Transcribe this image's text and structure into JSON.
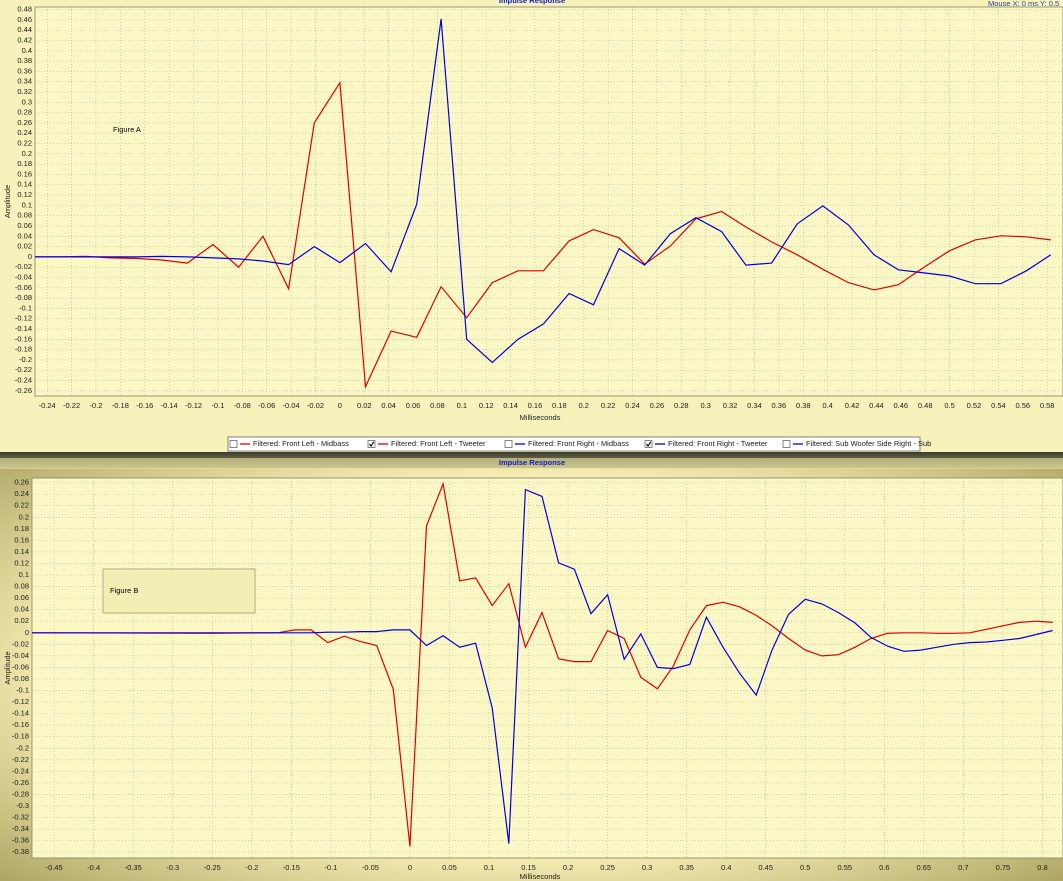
{
  "chart_data": [
    {
      "type": "line",
      "title": "Impulse Response",
      "mouse_readout": "Mouse X: 0 ms   Y: 0.5",
      "annotation": "Figure A",
      "x_label": "Milliseconds",
      "y_label": "Amplitude",
      "grid": true,
      "xlim": [
        -0.25,
        0.593
      ],
      "ylim": [
        -0.27,
        0.485
      ],
      "xticks": [
        -0.24,
        -0.22,
        -0.2,
        -0.18,
        -0.16,
        -0.14,
        -0.12,
        -0.1,
        -0.08,
        -0.06,
        -0.04,
        -0.02,
        0,
        0.02,
        0.04,
        0.06,
        0.08,
        0.1,
        0.12,
        0.14,
        0.16,
        0.18,
        0.2,
        0.22,
        0.24,
        0.26,
        0.28,
        0.3,
        0.32,
        0.34,
        0.36,
        0.38,
        0.4,
        0.42,
        0.44,
        0.46,
        0.48,
        0.5,
        0.52,
        0.54,
        0.56,
        0.58
      ],
      "yticks": [
        0.48,
        0.46,
        0.44,
        0.42,
        0.4,
        0.38,
        0.36,
        0.34,
        0.32,
        0.3,
        0.28,
        0.26,
        0.24,
        0.22,
        0.2,
        0.18,
        0.16,
        0.14,
        0.12,
        0.1,
        0.08,
        0.06,
        0.04,
        0.02,
        0,
        -0.02,
        -0.04,
        -0.06,
        -0.08,
        -0.1,
        -0.12,
        -0.14,
        -0.16,
        -0.18,
        -0.2,
        -0.22,
        -0.24,
        -0.26
      ],
      "x": [
        -0.25,
        -0.229,
        -0.208,
        -0.188,
        -0.167,
        -0.146,
        -0.125,
        -0.104,
        -0.083,
        -0.063,
        -0.042,
        -0.021,
        0,
        0.021,
        0.042,
        0.063,
        0.083,
        0.104,
        0.125,
        0.146,
        0.167,
        0.188,
        0.208,
        0.229,
        0.25,
        0.271,
        0.292,
        0.313,
        0.333,
        0.354,
        0.375,
        0.396,
        0.417,
        0.438,
        0.458,
        0.479,
        0.5,
        0.521,
        0.542,
        0.563,
        0.583
      ],
      "series": [
        {
          "name": "Filtered: Front Left - Midbass",
          "color": "#e00000",
          "checked": false
        },
        {
          "name": "Filtered: Front Left - Tweeter",
          "color": "#e00000",
          "checked": true,
          "values": [
            0,
            0,
            0.001,
            -0.002,
            -0.003,
            -0.006,
            -0.012,
            0.024,
            -0.02,
            0.04,
            -0.062,
            0.26,
            0.338,
            -0.252,
            -0.144,
            -0.156,
            -0.058,
            -0.118,
            -0.05,
            -0.027,
            -0.027,
            0.031,
            0.053,
            0.037,
            -0.014,
            0.021,
            0.074,
            0.088,
            0.058,
            0.029,
            0.004,
            -0.024,
            -0.05,
            -0.064,
            -0.054,
            -0.02,
            0.012,
            0.033,
            0.041,
            0.039,
            0.033
          ]
        },
        {
          "name": "Filtered: Front Right - Midbass",
          "color": "#0000e0",
          "checked": false
        },
        {
          "name": "Filtered: Front Right - Tweeter",
          "color": "#0000e0",
          "checked": true,
          "values": [
            0,
            0,
            0,
            0,
            0,
            0.001,
            0,
            -0.002,
            -0.004,
            -0.008,
            -0.015,
            0.02,
            -0.011,
            0.026,
            -0.029,
            0.102,
            0.462,
            -0.16,
            -0.205,
            -0.16,
            -0.13,
            -0.071,
            -0.093,
            0.016,
            -0.016,
            0.045,
            0.076,
            0.049,
            -0.016,
            -0.012,
            0.064,
            0.099,
            0.062,
            0.004,
            -0.025,
            -0.031,
            -0.037,
            -0.052,
            -0.052,
            -0.027,
            0.004
          ]
        },
        {
          "name": "Filtered: Sub Woofer Side Right - Sub",
          "color": "#0000e0",
          "checked": false
        }
      ]
    },
    {
      "type": "line",
      "title": "Impulse Response",
      "annotation": "Figure B",
      "x_label": "Milliseconds",
      "y_label": "Amplitude",
      "grid": true,
      "xlim": [
        -0.478,
        0.826
      ],
      "ylim": [
        -0.39,
        0.268
      ],
      "xticks": [
        -0.45,
        -0.4,
        -0.35,
        -0.3,
        -0.25,
        -0.2,
        -0.15,
        -0.1,
        -0.05,
        0,
        0.05,
        0.1,
        0.15,
        0.2,
        0.25,
        0.3,
        0.35,
        0.4,
        0.45,
        0.5,
        0.55,
        0.6,
        0.65,
        0.7,
        0.75,
        0.8
      ],
      "yticks": [
        0.26,
        0.24,
        0.22,
        0.2,
        0.18,
        0.16,
        0.14,
        0.12,
        0.1,
        0.08,
        0.06,
        0.04,
        0.02,
        0,
        -0.02,
        -0.04,
        -0.06,
        -0.08,
        -0.1,
        -0.12,
        -0.14,
        -0.16,
        -0.18,
        -0.2,
        -0.22,
        -0.24,
        -0.26,
        -0.28,
        -0.3,
        -0.32,
        -0.34,
        -0.36,
        -0.38
      ],
      "x": [
        -0.478,
        -0.25,
        -0.188,
        -0.167,
        -0.146,
        -0.125,
        -0.104,
        -0.083,
        -0.063,
        -0.042,
        -0.021,
        0,
        0.021,
        0.042,
        0.063,
        0.083,
        0.104,
        0.125,
        0.146,
        0.167,
        0.188,
        0.208,
        0.229,
        0.25,
        0.271,
        0.292,
        0.313,
        0.333,
        0.354,
        0.375,
        0.396,
        0.417,
        0.438,
        0.458,
        0.479,
        0.5,
        0.521,
        0.542,
        0.563,
        0.583,
        0.604,
        0.625,
        0.646,
        0.667,
        0.688,
        0.708,
        0.729,
        0.75,
        0.771,
        0.792,
        0.813
      ],
      "series": [
        {
          "color": "#e00000",
          "values": [
            0,
            -0.001,
            0,
            0,
            0.005,
            0.005,
            -0.017,
            -0.006,
            -0.015,
            -0.022,
            -0.098,
            -0.37,
            0.185,
            0.258,
            0.09,
            0.095,
            0.047,
            0.085,
            -0.025,
            0.035,
            -0.045,
            -0.05,
            -0.05,
            0.004,
            -0.01,
            -0.077,
            -0.097,
            -0.058,
            0.005,
            0.047,
            0.053,
            0.045,
            0.03,
            0.012,
            -0.01,
            -0.03,
            -0.04,
            -0.038,
            -0.025,
            -0.01,
            -0.001,
            0,
            0,
            -0.001,
            -0.001,
            0,
            0.006,
            0.012,
            0.018,
            0.02,
            0.018
          ]
        },
        {
          "color": "#0000e0",
          "values": [
            0,
            0,
            0,
            0,
            0,
            0,
            0.001,
            0.001,
            0.002,
            0.002,
            0.005,
            0.005,
            -0.022,
            -0.005,
            -0.025,
            -0.018,
            -0.13,
            -0.365,
            0.248,
            0.236,
            0.121,
            0.11,
            0.033,
            0.066,
            -0.046,
            -0.002,
            -0.06,
            -0.062,
            -0.055,
            0.027,
            -0.025,
            -0.07,
            -0.108,
            -0.03,
            0.032,
            0.058,
            0.05,
            0.035,
            0.017,
            -0.008,
            -0.023,
            -0.032,
            -0.03,
            -0.025,
            -0.02,
            -0.017,
            -0.016,
            -0.013,
            -0.01,
            -0.003,
            0.004
          ]
        }
      ]
    }
  ]
}
